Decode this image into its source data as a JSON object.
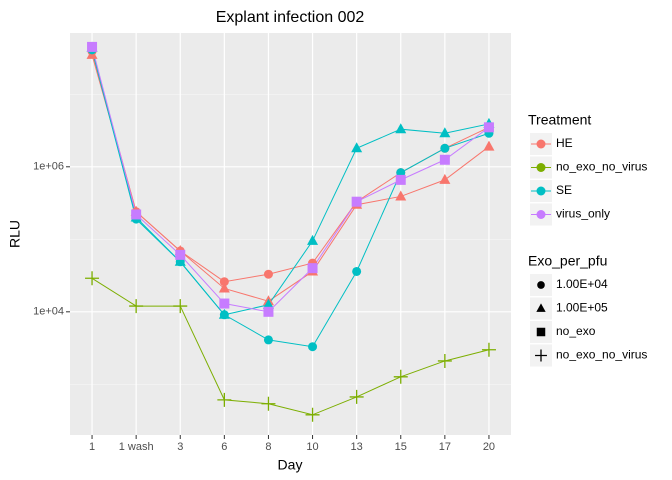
{
  "chart_data": {
    "type": "line",
    "title": "Explant infection 002",
    "x_label": "Day",
    "y_label": "RLU",
    "categories": [
      "1",
      "1 wash",
      "3",
      "6",
      "8",
      "10",
      "13",
      "15",
      "17",
      "20"
    ],
    "log_y": true,
    "ylim": [
      200,
      70000000
    ],
    "yticks": [
      {
        "value": 10000,
        "label": "1e+04"
      },
      {
        "value": 1000000,
        "label": "1e+06"
      }
    ],
    "y_minor_grid": [
      1000,
      100000,
      10000000
    ],
    "grid": true,
    "legends": [
      {
        "title": "Treatment",
        "entries": [
          {
            "label": "HE",
            "color": "#F8766D"
          },
          {
            "label": "no_exo_no_virus",
            "color": "#7CAE00"
          },
          {
            "label": "SE",
            "color": "#00BFC4"
          },
          {
            "label": "virus_only",
            "color": "#C77CFF"
          }
        ]
      },
      {
        "title": "Exo_per_pfu",
        "entries": [
          {
            "label": "1.00E+04",
            "shape": "circle"
          },
          {
            "label": "1.00E+05",
            "shape": "triangle"
          },
          {
            "label": "no_exo",
            "shape": "square"
          },
          {
            "label": "no_exo_no_virus",
            "shape": "plus"
          }
        ]
      }
    ],
    "series": [
      {
        "treatment": "HE",
        "exo": "1.00E+04",
        "color": "#F8766D",
        "shape": "circle",
        "values": [
          39000000,
          240000,
          69000,
          26000,
          33000,
          47000,
          330000,
          830000,
          1800000,
          3500000
        ]
      },
      {
        "treatment": "HE",
        "exo": "1.00E+05",
        "color": "#F8766D",
        "shape": "triangle",
        "values": [
          35000000,
          240000,
          69000,
          21000,
          14000,
          36000,
          300000,
          390000,
          660000,
          1900000
        ]
      },
      {
        "treatment": "SE",
        "exo": "1.00E+04",
        "color": "#00BFC4",
        "shape": "circle",
        "values": [
          41000000,
          190000,
          49000,
          9100,
          4100,
          3300,
          36000,
          830000,
          1800000,
          2900000
        ]
      },
      {
        "treatment": "SE",
        "exo": "1.00E+05",
        "color": "#00BFC4",
        "shape": "triangle",
        "values": [
          44000000,
          200000,
          49000,
          9100,
          12500,
          95000,
          1800000,
          3300000,
          2900000,
          3900000
        ]
      },
      {
        "treatment": "virus_only",
        "exo": "no_exo",
        "color": "#C77CFF",
        "shape": "square",
        "values": [
          45000000,
          220000,
          61000,
          13000,
          10000,
          40000,
          330000,
          660000,
          1250000,
          3500000
        ]
      },
      {
        "treatment": "no_exo_no_virus",
        "exo": "no_exo_no_virus",
        "color": "#7CAE00",
        "shape": "plus",
        "values": [
          29000,
          12000,
          12000,
          610,
          540,
          380,
          670,
          1270,
          2100,
          3000
        ]
      }
    ]
  }
}
